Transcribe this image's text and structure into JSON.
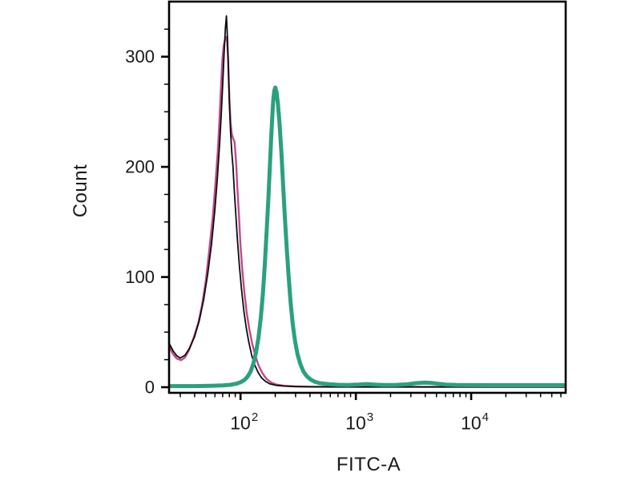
{
  "figure": {
    "background": "#ffffff",
    "frame_color": "#000000"
  },
  "chart_data": {
    "type": "line",
    "title": "",
    "xlabel": "FITC-A",
    "ylabel": "Count",
    "x_scale": "log",
    "xlim": [
      24,
      66000
    ],
    "ylim": [
      -5.1,
      350
    ],
    "grid": false,
    "legend": null,
    "y_major_ticks": [
      0,
      100,
      200,
      300
    ],
    "y_minor_step": 25,
    "x_major_ticks": [
      100,
      1000,
      10000
    ],
    "x_major_tick_labels": [
      {
        "base": "10",
        "exp": "2"
      },
      {
        "base": "10",
        "exp": "3"
      },
      {
        "base": "10",
        "exp": "4"
      }
    ],
    "series": [
      {
        "name": "control-magenta",
        "color": "#c04a8a",
        "stroke_width": 2.4,
        "points": [
          [
            24,
            37
          ],
          [
            26,
            30
          ],
          [
            28,
            26
          ],
          [
            30.5,
            24.5
          ],
          [
            33,
            27
          ],
          [
            35.5,
            33
          ],
          [
            39,
            44
          ],
          [
            43,
            58
          ],
          [
            46.5,
            75
          ],
          [
            50,
            97
          ],
          [
            53.5,
            124
          ],
          [
            57.5,
            155
          ],
          [
            60.5,
            184
          ],
          [
            63.5,
            214
          ],
          [
            65.5,
            241
          ],
          [
            67.5,
            269
          ],
          [
            69.5,
            297
          ],
          [
            71.5,
            310
          ],
          [
            73.5,
            316
          ],
          [
            75,
            318
          ],
          [
            76.5,
            314
          ],
          [
            78,
            298
          ],
          [
            80,
            262
          ],
          [
            82,
            240
          ],
          [
            84,
            230
          ],
          [
            86,
            226
          ],
          [
            88.5,
            223
          ],
          [
            90,
            215
          ],
          [
            92,
            200
          ],
          [
            94,
            180
          ],
          [
            97,
            155
          ],
          [
            100,
            128
          ],
          [
            104,
            104
          ],
          [
            108,
            86
          ],
          [
            113,
            68
          ],
          [
            119,
            53
          ],
          [
            126,
            40
          ],
          [
            134,
            29
          ],
          [
            143,
            20
          ],
          [
            154,
            13
          ],
          [
            168,
            7.5
          ],
          [
            185,
            4.2
          ],
          [
            205,
            2.4
          ],
          [
            235,
            1.4
          ],
          [
            290,
            0.8
          ],
          [
            400,
            0.4
          ],
          [
            800,
            0.25
          ],
          [
            66000,
            0.25
          ]
        ]
      },
      {
        "name": "control-black",
        "color": "#0d0d0d",
        "stroke_width": 1.8,
        "points": [
          [
            24,
            40
          ],
          [
            26,
            33
          ],
          [
            28,
            28.5
          ],
          [
            30,
            26.5
          ],
          [
            33,
            29
          ],
          [
            36,
            35
          ],
          [
            40,
            46
          ],
          [
            44,
            61
          ],
          [
            48,
            80
          ],
          [
            52,
            103
          ],
          [
            56,
            130
          ],
          [
            60,
            162
          ],
          [
            63,
            190
          ],
          [
            66,
            222
          ],
          [
            68,
            247
          ],
          [
            70,
            274
          ],
          [
            72,
            303
          ],
          [
            74,
            327
          ],
          [
            75.5,
            337
          ],
          [
            77,
            317
          ],
          [
            78.5,
            287
          ],
          [
            80,
            257
          ],
          [
            82,
            231
          ],
          [
            84,
            213
          ],
          [
            86,
            200
          ],
          [
            88,
            181
          ],
          [
            91,
            157
          ],
          [
            94,
            134
          ],
          [
            98,
            109
          ],
          [
            102,
            89
          ],
          [
            107,
            69
          ],
          [
            112,
            54
          ],
          [
            118,
            41
          ],
          [
            125,
            29
          ],
          [
            133,
            20
          ],
          [
            142,
            13.5
          ],
          [
            152,
            8.5
          ],
          [
            165,
            5.2
          ],
          [
            180,
            3
          ],
          [
            205,
            1.7
          ],
          [
            240,
            1
          ],
          [
            300,
            0.6
          ],
          [
            450,
            0.35
          ],
          [
            1000,
            0.25
          ],
          [
            66000,
            0.2
          ]
        ]
      },
      {
        "name": "stained-teal",
        "color": "#2aa17e",
        "stroke_width": 5,
        "points": [
          [
            24,
            1
          ],
          [
            40,
            1
          ],
          [
            55,
            1.2
          ],
          [
            70,
            1.6
          ],
          [
            82,
            2.2
          ],
          [
            92,
            3.2
          ],
          [
            100,
            4.5
          ],
          [
            108,
            6.5
          ],
          [
            115,
            9.5
          ],
          [
            122,
            14
          ],
          [
            129,
            21
          ],
          [
            136,
            31
          ],
          [
            143,
            45
          ],
          [
            150,
            63
          ],
          [
            156,
            84
          ],
          [
            162,
            110
          ],
          [
            168,
            139
          ],
          [
            174,
            169
          ],
          [
            179,
            197
          ],
          [
            184,
            224
          ],
          [
            188,
            244
          ],
          [
            192,
            260
          ],
          [
            196,
            269
          ],
          [
            200,
            272
          ],
          [
            205,
            268
          ],
          [
            211,
            257
          ],
          [
            218,
            239
          ],
          [
            226,
            213
          ],
          [
            234,
            184
          ],
          [
            242,
            156
          ],
          [
            251,
            128
          ],
          [
            261,
            101
          ],
          [
            272,
            77
          ],
          [
            284,
            57
          ],
          [
            297,
            42
          ],
          [
            312,
            30
          ],
          [
            330,
            21
          ],
          [
            350,
            14.5
          ],
          [
            375,
            10
          ],
          [
            405,
            7
          ],
          [
            440,
            5
          ],
          [
            480,
            3.8
          ],
          [
            530,
            3.2
          ],
          [
            600,
            2.6
          ],
          [
            700,
            2.2
          ],
          [
            850,
            2
          ],
          [
            1050,
            2.3
          ],
          [
            1250,
            2.8
          ],
          [
            1400,
            2.5
          ],
          [
            1700,
            2
          ],
          [
            2200,
            2
          ],
          [
            2800,
            2.6
          ],
          [
            3300,
            3.6
          ],
          [
            3900,
            4.2
          ],
          [
            4500,
            3.9
          ],
          [
            5200,
            3.1
          ],
          [
            6000,
            2.4
          ],
          [
            7500,
            2
          ],
          [
            10000,
            1.9
          ],
          [
            15000,
            1.8
          ],
          [
            25000,
            1.8
          ],
          [
            40000,
            1.8
          ],
          [
            66000,
            1.8
          ]
        ]
      }
    ]
  }
}
